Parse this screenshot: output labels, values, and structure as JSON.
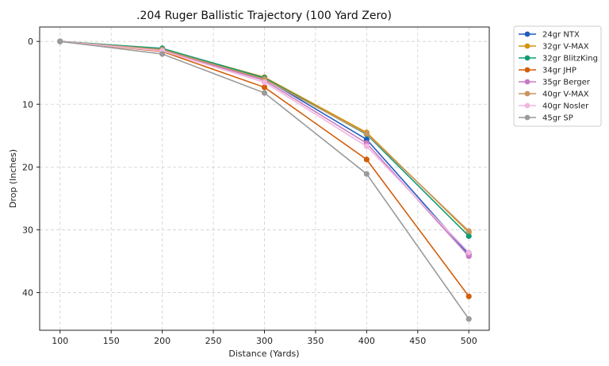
{
  "chart_data": {
    "type": "line",
    "title": ".204 Ruger Ballistic Trajectory (100 Yard Zero)",
    "xlabel": "Distance (Yards)",
    "ylabel": "Drop (Inches)",
    "xlim": [
      80,
      520
    ],
    "ylim": [
      -2.3,
      46
    ],
    "y_inverted": true,
    "xticks": [
      100,
      150,
      200,
      250,
      300,
      350,
      400,
      450,
      500
    ],
    "yticks": [
      0,
      10,
      20,
      30,
      40
    ],
    "grid": true,
    "legend_position": "outside-top-right",
    "x": [
      100,
      200,
      300,
      400,
      500
    ],
    "series": [
      {
        "name": "24gr NTX",
        "color": "#1f5bbf",
        "values": [
          0,
          1.2,
          5.9,
          15.6,
          33.9
        ]
      },
      {
        "name": "32gr V-MAX",
        "color": "#d4930d",
        "values": [
          0,
          1.2,
          5.7,
          14.5,
          30.4
        ]
      },
      {
        "name": "32gr BlitzKing",
        "color": "#129b74",
        "values": [
          0,
          1.1,
          5.8,
          14.8,
          31.0
        ]
      },
      {
        "name": "34gr JHP",
        "color": "#d25f0a",
        "values": [
          0,
          1.6,
          7.3,
          18.8,
          40.6
        ]
      },
      {
        "name": "35gr Berger",
        "color": "#c77ac2",
        "values": [
          0,
          1.4,
          6.2,
          16.2,
          34.2
        ]
      },
      {
        "name": "40gr V-MAX",
        "color": "#c99461",
        "values": [
          0,
          1.3,
          6.0,
          14.7,
          30.2
        ]
      },
      {
        "name": "40gr Nosler",
        "color": "#f2b6e0",
        "values": [
          0,
          1.5,
          6.5,
          16.7,
          33.6
        ]
      },
      {
        "name": "45gr SP",
        "color": "#9a9a9a",
        "values": [
          0,
          2.0,
          8.2,
          21.1,
          44.2
        ]
      }
    ]
  }
}
